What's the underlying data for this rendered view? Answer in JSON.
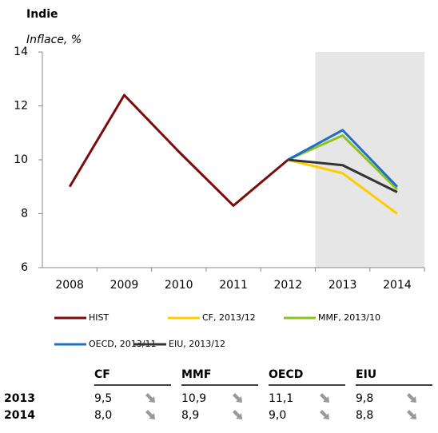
{
  "chart_data": {
    "type": "line",
    "title": "Indie",
    "subtitle": "Inflace, %",
    "categories": [
      "2008",
      "2009",
      "2010",
      "2011",
      "2012",
      "2013",
      "2014"
    ],
    "series": [
      {
        "name": "HIST",
        "color": "#7b0c0c",
        "values": [
          9.0,
          12.4,
          10.3,
          8.3,
          10.0,
          null,
          null
        ]
      },
      {
        "name": "CF, 2013/12",
        "color": "#ffcc00",
        "values": [
          null,
          null,
          null,
          null,
          10.0,
          9.5,
          8.0
        ]
      },
      {
        "name": "MMF, 2013/10",
        "color": "#8dc21f",
        "values": [
          null,
          null,
          null,
          null,
          10.0,
          10.9,
          8.9
        ]
      },
      {
        "name": "OECD, 2013/11",
        "color": "#1f6fc5",
        "values": [
          null,
          null,
          null,
          null,
          10.0,
          11.1,
          9.0
        ]
      },
      {
        "name": "EIU, 2013/12",
        "color": "#333333",
        "values": [
          null,
          null,
          null,
          null,
          10.0,
          9.8,
          8.8
        ]
      }
    ],
    "ylim": [
      6,
      14
    ],
    "yticks": [
      6,
      8,
      10,
      12,
      14
    ],
    "grid": false,
    "shaded_from": 5,
    "shade_color": "#e6e6e6"
  },
  "table": {
    "columns": [
      "CF",
      "MMF",
      "OECD",
      "EIU"
    ],
    "rows": [
      {
        "label": "2013",
        "cells": [
          "9,5",
          "10,9",
          "11,1",
          "9,8"
        ]
      },
      {
        "label": "2014",
        "cells": [
          "8,0",
          "8,9",
          "9,0",
          "8,8"
        ]
      }
    ]
  }
}
